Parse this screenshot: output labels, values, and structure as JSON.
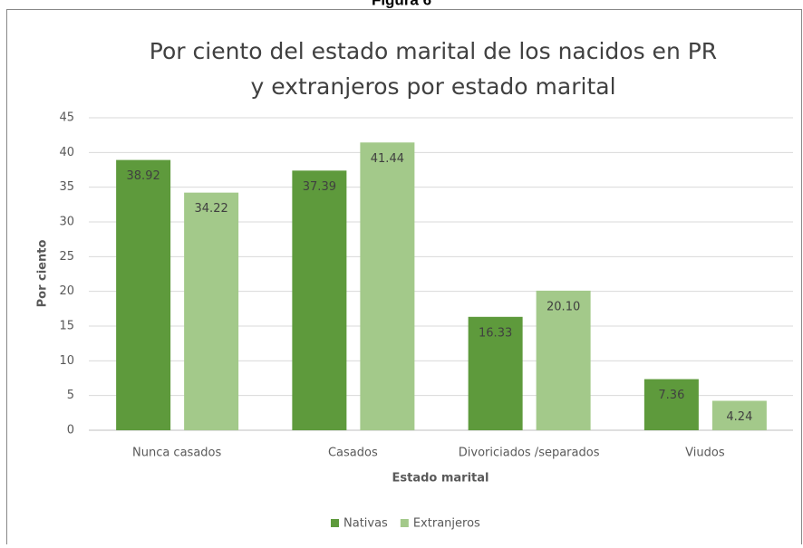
{
  "figure_label": "Figura 6",
  "chart_data": {
    "type": "bar",
    "title": [
      "Por ciento del estado marital de los nacidos en PR",
      "y extranjeros por estado marital"
    ],
    "xlabel": "Estado marital",
    "ylabel": "Por ciento",
    "categories": [
      "Nunca casados",
      "Casados",
      "Divoriciados /separados",
      "Viudos"
    ],
    "series": [
      {
        "name": "Nativas",
        "color": "#5e9a3c",
        "values": [
          38.92,
          37.39,
          16.33,
          7.36
        ],
        "value_labels": [
          "38.92",
          "37.39",
          "16.33",
          "7.36"
        ]
      },
      {
        "name": "Extranjeros",
        "color": "#a3c98a",
        "values": [
          34.22,
          41.44,
          20.1,
          4.24
        ],
        "value_labels": [
          "34.22",
          "41.44",
          "20.10",
          "4.24"
        ]
      }
    ],
    "ylim": [
      0,
      45
    ],
    "yticks": [
      0,
      5,
      10,
      15,
      20,
      25,
      30,
      35,
      40,
      45
    ],
    "grid": true,
    "legend": "bottom"
  }
}
